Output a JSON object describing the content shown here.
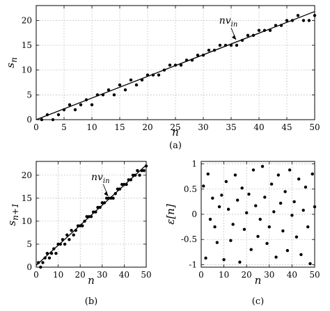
{
  "chart_data": [
    {
      "id": "a",
      "type": "scatter",
      "caption": "(a)",
      "xlabel": "n",
      "ylabel_main": "s",
      "ylabel_sub": "n",
      "xlim": [
        0,
        50
      ],
      "ylim": [
        0,
        23
      ],
      "xticks": [
        0,
        5,
        10,
        15,
        20,
        25,
        30,
        35,
        40,
        45,
        50
      ],
      "yticks": [
        0,
        5,
        10,
        15,
        20
      ],
      "grid": true,
      "line": {
        "x": [
          0,
          50
        ],
        "y": [
          0,
          21.8
        ]
      },
      "annotation": {
        "main": "nv",
        "sub": "in",
        "target": [
          36,
          15.7
        ]
      },
      "x": [
        1,
        2,
        3,
        4,
        5,
        6,
        7,
        8,
        9,
        10,
        11,
        12,
        13,
        14,
        15,
        16,
        17,
        18,
        19,
        20,
        21,
        22,
        23,
        24,
        25,
        26,
        27,
        28,
        29,
        30,
        31,
        32,
        33,
        34,
        35,
        36,
        37,
        38,
        39,
        40,
        41,
        42,
        43,
        44,
        45,
        46,
        47,
        48,
        49,
        50
      ],
      "y": [
        0,
        1,
        0,
        1,
        2,
        3,
        2,
        3,
        4,
        3,
        5,
        5,
        6,
        5,
        7,
        6,
        8,
        7,
        8,
        9,
        9,
        9,
        10,
        11,
        11,
        11,
        12,
        12,
        13,
        13,
        14,
        14,
        15,
        15,
        15,
        15,
        16,
        17,
        17,
        18,
        18,
        18,
        19,
        19,
        20,
        20,
        21,
        20,
        20,
        21
      ]
    },
    {
      "id": "b",
      "type": "scatter",
      "caption": "(b)",
      "xlabel": "n",
      "ylabel_main": "s",
      "ylabel_sub": "n+1",
      "xlim": [
        0,
        50
      ],
      "ylim": [
        0,
        23
      ],
      "xticks": [
        0,
        10,
        20,
        30,
        40,
        50
      ],
      "yticks": [
        0,
        5,
        10,
        15,
        20
      ],
      "grid": true,
      "line": {
        "x": [
          0,
          50
        ],
        "y": [
          0.4,
          22.2
        ]
      },
      "annotation": {
        "main": "nv",
        "sub": "in",
        "target": [
          33,
          15
        ]
      },
      "x": [
        1,
        2,
        3,
        4,
        5,
        6,
        7,
        8,
        9,
        10,
        11,
        12,
        13,
        14,
        15,
        16,
        17,
        18,
        19,
        20,
        21,
        22,
        23,
        24,
        25,
        26,
        27,
        28,
        29,
        30,
        31,
        32,
        33,
        34,
        35,
        36,
        37,
        38,
        39,
        40,
        41,
        42,
        43,
        44,
        45,
        46,
        47,
        48,
        49,
        50
      ],
      "y": [
        1,
        0,
        1,
        2,
        3,
        2,
        3,
        4,
        3,
        5,
        5,
        6,
        5,
        7,
        6,
        8,
        7,
        8,
        9,
        9,
        9,
        10,
        11,
        11,
        11,
        12,
        12,
        13,
        13,
        14,
        14,
        15,
        15,
        15,
        15,
        16,
        17,
        17,
        18,
        18,
        18,
        19,
        19,
        20,
        20,
        21,
        20,
        21,
        21,
        22
      ]
    },
    {
      "id": "c",
      "type": "scatter",
      "caption": "(c)",
      "xlabel": "n",
      "ylabel": "ε[n]",
      "xlim": [
        0,
        50
      ],
      "ylim": [
        -1.05,
        1.05
      ],
      "xticks": [
        0,
        10,
        20,
        30,
        40,
        50
      ],
      "yticks": [
        -1,
        -0.5,
        0,
        0.5,
        1
      ],
      "grid": true,
      "x": [
        1,
        2,
        3,
        4,
        5,
        6,
        7,
        8,
        9,
        10,
        11,
        12,
        13,
        14,
        15,
        16,
        17,
        18,
        19,
        20,
        21,
        22,
        23,
        24,
        25,
        26,
        27,
        28,
        29,
        30,
        31,
        32,
        33,
        34,
        35,
        36,
        37,
        38,
        39,
        40,
        41,
        42,
        43,
        44,
        45,
        46,
        47,
        48,
        49,
        50
      ],
      "y": [
        0.56,
        -0.87,
        0.8,
        -0.1,
        0.32,
        -0.25,
        -0.56,
        0.15,
        0.38,
        -0.9,
        0.65,
        0.1,
        -0.52,
        -0.2,
        0.78,
        0.28,
        -0.95,
        0.52,
        -0.3,
        0.03,
        0.4,
        -0.7,
        0.88,
        0.17,
        -0.44,
        -0.1,
        0.95,
        0.34,
        -0.58,
        -0.25,
        0.6,
        0.05,
        -0.85,
        0.78,
        0.22,
        -0.33,
        0.45,
        -0.72,
        0.88,
        -0.02,
        0.25,
        -0.45,
        0.7,
        -0.8,
        0.08,
        0.54,
        -0.25,
        -0.98,
        0.8,
        0.15
      ]
    }
  ]
}
